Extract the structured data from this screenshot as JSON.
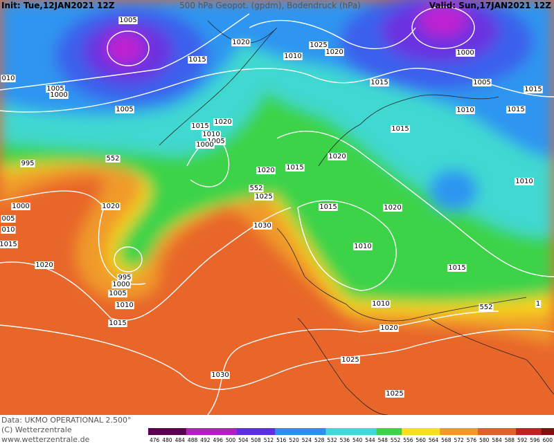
{
  "header": {
    "init": "Init: Tue,12JAN2021 12Z",
    "title": "500 hPa Geopot. (gpdm), Bodendruck (hPa)",
    "valid": "Valid: Sun,17JAN2021 12Z"
  },
  "map": {
    "labels": [
      "1005",
      "1015",
      "1020",
      "1010",
      "1025",
      "1020",
      "1000",
      "010",
      "1005",
      "1000",
      "1015",
      "1005",
      "1015",
      "1005",
      "1010",
      "1015",
      "1020",
      "1015",
      "1015",
      "1010",
      "1005",
      "1000",
      "552",
      "995",
      "1020",
      "1020",
      "1015",
      "552",
      "1025",
      "1010",
      "1000",
      "1020",
      "1015",
      "1020",
      "005",
      "1030",
      "010",
      "1015",
      "1010",
      "1020",
      "1015",
      "995",
      "1000",
      "1005",
      "1010",
      "1010",
      "552",
      "1",
      "1015",
      "1020",
      "1025",
      "1030",
      "1025"
    ]
  },
  "footer": {
    "lines": [
      "Data: UKMO OPERATIONAL 2.500°",
      "(C) Wetterzentrale",
      "www.wetterzentrale.de"
    ],
    "scale": [
      476,
      480,
      484,
      488,
      492,
      496,
      500,
      504,
      508,
      512,
      516,
      520,
      524,
      528,
      532,
      536,
      540,
      544,
      548,
      552,
      556,
      560,
      564,
      568,
      572,
      576,
      580,
      584,
      588,
      592,
      596,
      600
    ]
  }
}
